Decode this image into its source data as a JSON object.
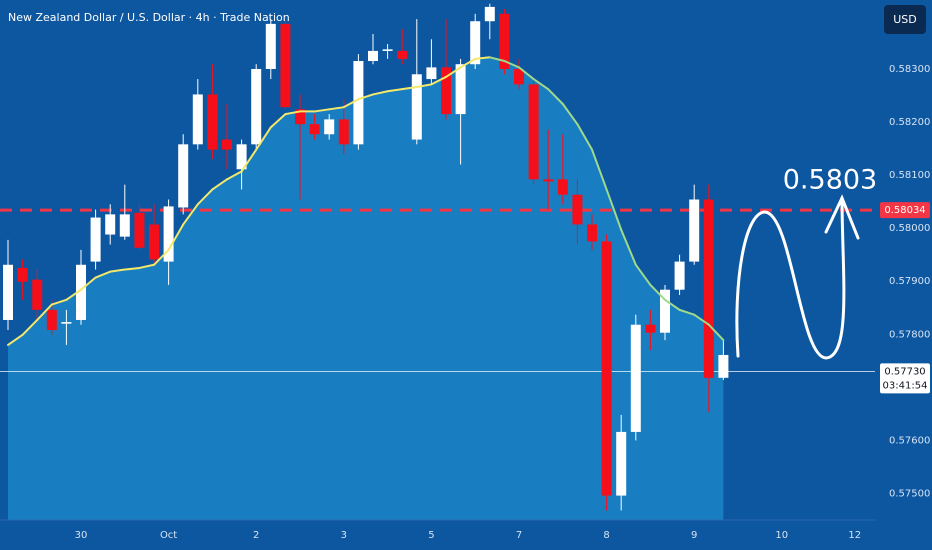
{
  "chart_data": {
    "type": "candlestick",
    "title": "New Zealand Dollar / U.S. Dollar · 4h · Trade Nation",
    "currency": "USD",
    "categories": [
      null,
      null,
      null,
      null,
      null,
      "30",
      null,
      null,
      null,
      null,
      null,
      "Oct",
      null,
      null,
      null,
      null,
      null,
      "2",
      null,
      null,
      null,
      null,
      null,
      "3",
      null,
      null,
      null,
      null,
      null,
      "5",
      null,
      null,
      null,
      null,
      null,
      "7",
      null,
      null,
      null,
      null,
      null,
      "8",
      null,
      null,
      null,
      null,
      null,
      "9",
      null,
      null,
      null,
      null,
      null,
      "10",
      null,
      null,
      null,
      null,
      "12"
    ],
    "open": [
      0.57827,
      0.57925,
      0.57903,
      0.57846,
      0.5782,
      0.57827,
      0.57937,
      0.57988,
      0.57984,
      0.58029,
      0.58007,
      0.57937,
      0.58039,
      0.58158,
      0.58252,
      0.58167,
      0.58111,
      0.58158,
      0.583,
      0.58385,
      0.58224,
      0.58196,
      0.58177,
      0.58205,
      0.58158,
      0.58315,
      0.58334,
      0.58334,
      0.58167,
      0.58281,
      0.58303,
      0.58215,
      0.58309,
      0.5839,
      0.58404,
      0.583,
      0.58271,
      0.58092,
      0.58092,
      0.58063,
      0.58007,
      0.57975,
      0.57496,
      0.57616,
      0.57818,
      0.57803,
      0.57884,
      0.57937,
      0.58054,
      0.57718,
      null,
      null,
      null,
      null,
      null,
      null,
      null,
      null,
      null
    ],
    "high": [
      0.57978,
      0.57941,
      0.57922,
      0.57865,
      0.57846,
      0.57959,
      0.58035,
      0.58045,
      0.58082,
      0.58045,
      0.58045,
      0.58054,
      0.58177,
      0.58281,
      0.58309,
      0.58234,
      0.58167,
      0.58309,
      0.58394,
      0.58394,
      0.58252,
      0.58215,
      0.58215,
      0.58243,
      0.58328,
      0.58366,
      0.58347,
      0.58375,
      0.58394,
      0.58356,
      0.58394,
      0.58319,
      0.58404,
      0.58423,
      0.58413,
      0.58319,
      0.58281,
      0.58186,
      0.58177,
      0.58092,
      0.58026,
      0.57988,
      0.57648,
      0.57837,
      0.57846,
      0.57893,
      0.5795,
      0.58082,
      0.58082,
      0.57789,
      null,
      null,
      null,
      null,
      null,
      null,
      null,
      null,
      null
    ],
    "low": [
      0.57808,
      0.57865,
      0.57827,
      0.57799,
      0.5778,
      0.57818,
      0.57922,
      0.57969,
      0.57978,
      0.57959,
      0.57931,
      0.57893,
      0.58026,
      0.58148,
      0.5813,
      0.58111,
      0.58073,
      0.58148,
      0.58281,
      0.58224,
      0.58054,
      0.58167,
      0.58167,
      0.58139,
      0.58148,
      0.58309,
      0.58319,
      0.58309,
      0.58158,
      0.58271,
      0.58205,
      0.5812,
      0.583,
      0.58356,
      0.5829,
      0.58262,
      0.58082,
      0.58035,
      0.58045,
      0.57969,
      0.57959,
      0.57468,
      0.57468,
      0.576,
      0.5777,
      0.57789,
      0.57874,
      0.57931,
      0.57653,
      0.57714,
      null,
      null,
      null,
      null,
      null,
      null,
      null,
      null,
      null
    ],
    "close": [
      0.57931,
      0.57899,
      0.57846,
      0.57808,
      0.57823,
      0.57931,
      0.5802,
      0.58026,
      0.58026,
      0.57963,
      0.57941,
      0.58041,
      0.58158,
      0.58252,
      0.58148,
      0.58148,
      0.58158,
      0.583,
      0.58385,
      0.58228,
      0.58196,
      0.58177,
      0.58205,
      0.58158,
      0.58315,
      0.58334,
      0.58337,
      0.58319,
      0.5829,
      0.58303,
      0.58215,
      0.58309,
      0.5839,
      0.58417,
      0.583,
      0.58271,
      0.58092,
      0.58088,
      0.58063,
      0.58007,
      0.57975,
      0.57496,
      0.57616,
      0.57818,
      0.57803,
      0.57884,
      0.57937,
      0.58054,
      0.57718,
      0.57761,
      null,
      null,
      null,
      null,
      null,
      null,
      null,
      null,
      null
    ],
    "up_color": "#ffffff",
    "down_color": "#f50f1a",
    "ma": {
      "values": [
        0.5778,
        0.57799,
        0.57827,
        0.57856,
        0.57865,
        0.57884,
        0.57907,
        0.57918,
        0.57922,
        0.57925,
        0.57931,
        0.57959,
        0.58007,
        0.58045,
        0.58073,
        0.58092,
        0.58107,
        0.58148,
        0.5819,
        0.58215,
        0.5822,
        0.5822,
        0.58224,
        0.58228,
        0.58243,
        0.58252,
        0.58258,
        0.58262,
        0.58266,
        0.58271,
        0.58285,
        0.58303,
        0.58319,
        0.58322,
        0.58315,
        0.58303,
        0.58281,
        0.58262,
        0.58234,
        0.58196,
        0.58148,
        0.58073,
        0.57997,
        0.57931,
        0.57893,
        0.57865,
        0.57846,
        0.57837,
        0.57818,
        0.57789,
        null,
        null,
        null,
        null,
        null,
        null,
        null,
        null,
        null
      ],
      "rising_color": "#f3e86a",
      "falling_color": "#9fd98a",
      "area_color": "#1e8ccc"
    },
    "ylim": [
      0.5745,
      0.5843
    ],
    "yticks": [
      {
        "value": 0.583,
        "label": "0.58300"
      },
      {
        "value": 0.582,
        "label": "0.58200"
      },
      {
        "value": 0.581,
        "label": "0.58100"
      },
      {
        "value": 0.58,
        "label": "0.58000"
      },
      {
        "value": 0.579,
        "label": "0.57900"
      },
      {
        "value": 0.578,
        "label": "0.57800"
      },
      {
        "value": 0.576,
        "label": "0.57600"
      },
      {
        "value": 0.575,
        "label": "0.57500"
      }
    ],
    "hlines": [
      {
        "value": 0.58034,
        "color": "#f23645"
      },
      {
        "value": {
          "value": 0.5773,
          "label": "0.57730"
        },
        "color": "#ffffff",
        "countdown": "03:41:54"
      }
    ],
    "annotation": "0.5803"
  }
}
